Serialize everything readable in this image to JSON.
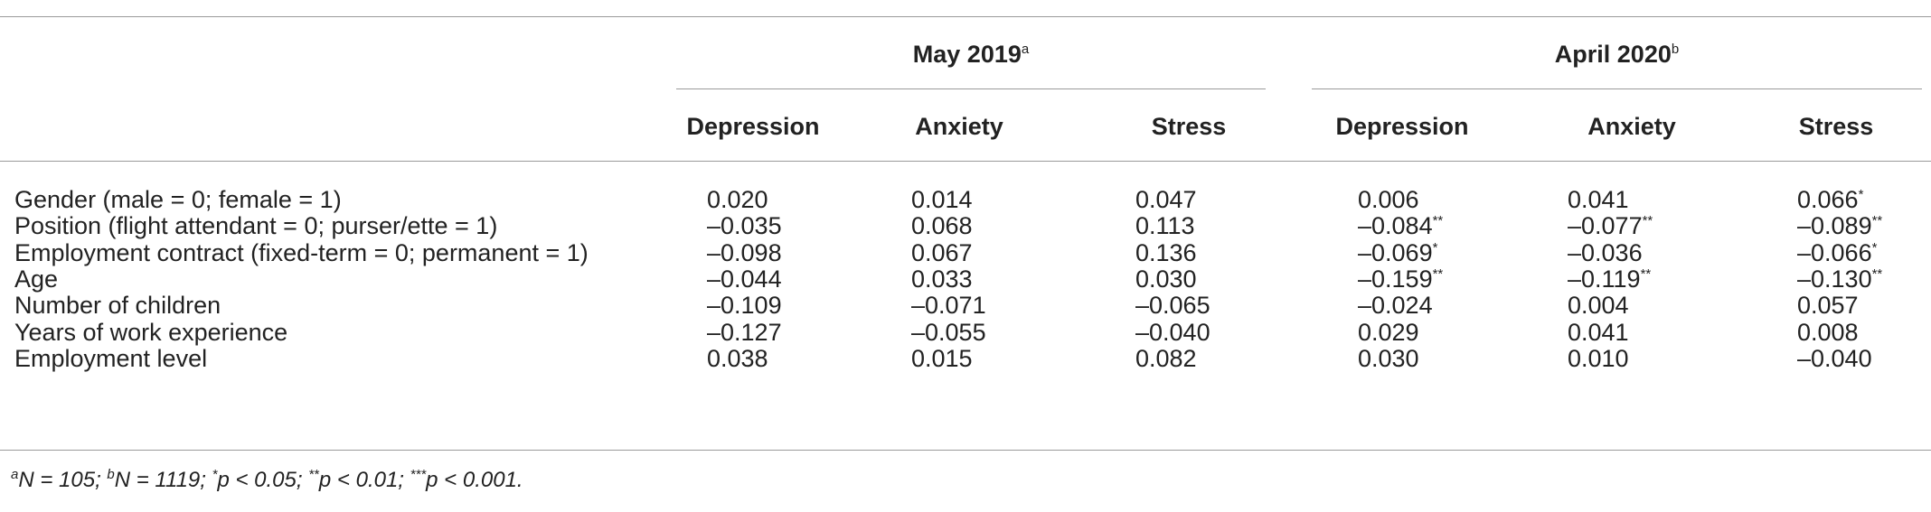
{
  "table": {
    "groups": [
      {
        "label": "May 2019",
        "sup": "a"
      },
      {
        "label": "April 2020",
        "sup": "b"
      }
    ],
    "columns": [
      "Depression",
      "Anxiety",
      "Stress",
      "Depression",
      "Anxiety",
      "Stress"
    ],
    "rows": [
      {
        "label": "Gender (male = 0; female = 1)",
        "cells": [
          {
            "v": "0.020",
            "s": ""
          },
          {
            "v": "0.014",
            "s": ""
          },
          {
            "v": "0.047",
            "s": ""
          },
          {
            "v": "0.006",
            "s": ""
          },
          {
            "v": "0.041",
            "s": ""
          },
          {
            "v": "0.066",
            "s": "*"
          }
        ]
      },
      {
        "label": "Position (flight attendant = 0; purser/ette = 1)",
        "cells": [
          {
            "v": "–0.035",
            "s": ""
          },
          {
            "v": "0.068",
            "s": ""
          },
          {
            "v": "0.113",
            "s": ""
          },
          {
            "v": "–0.084",
            "s": "**"
          },
          {
            "v": "–0.077",
            "s": "**"
          },
          {
            "v": "–0.089",
            "s": "**"
          }
        ]
      },
      {
        "label": "Employment contract (fixed-term = 0; permanent = 1)",
        "cells": [
          {
            "v": "–0.098",
            "s": ""
          },
          {
            "v": "0.067",
            "s": ""
          },
          {
            "v": "0.136",
            "s": ""
          },
          {
            "v": "–0.069",
            "s": "*"
          },
          {
            "v": "–0.036",
            "s": ""
          },
          {
            "v": "–0.066",
            "s": "*"
          }
        ]
      },
      {
        "label": "Age",
        "cells": [
          {
            "v": "–0.044",
            "s": ""
          },
          {
            "v": "0.033",
            "s": ""
          },
          {
            "v": "0.030",
            "s": ""
          },
          {
            "v": "–0.159",
            "s": "**"
          },
          {
            "v": "–0.119",
            "s": "**"
          },
          {
            "v": "–0.130",
            "s": "**"
          }
        ]
      },
      {
        "label": "Number of children",
        "cells": [
          {
            "v": "–0.109",
            "s": ""
          },
          {
            "v": "–0.071",
            "s": ""
          },
          {
            "v": "–0.065",
            "s": ""
          },
          {
            "v": "–0.024",
            "s": ""
          },
          {
            "v": "0.004",
            "s": ""
          },
          {
            "v": "0.057",
            "s": ""
          }
        ]
      },
      {
        "label": "Years of work experience",
        "cells": [
          {
            "v": "–0.127",
            "s": ""
          },
          {
            "v": "–0.055",
            "s": ""
          },
          {
            "v": "–0.040",
            "s": ""
          },
          {
            "v": "0.029",
            "s": ""
          },
          {
            "v": "0.041",
            "s": ""
          },
          {
            "v": "0.008",
            "s": ""
          }
        ]
      },
      {
        "label": "Employment level",
        "cells": [
          {
            "v": "0.038",
            "s": ""
          },
          {
            "v": "0.015",
            "s": ""
          },
          {
            "v": "0.082",
            "s": ""
          },
          {
            "v": "0.030",
            "s": ""
          },
          {
            "v": "0.010",
            "s": ""
          },
          {
            "v": "–0.040",
            "s": ""
          }
        ]
      }
    ],
    "footnote": {
      "parts": [
        {
          "sup": "a"
        },
        {
          "text": "N = 105; "
        },
        {
          "sup": "b"
        },
        {
          "text": "N = 1119; "
        },
        {
          "sup": "*"
        },
        {
          "text": "p < 0.05; "
        },
        {
          "sup": "**"
        },
        {
          "text": "p < 0.01; "
        },
        {
          "sup": "***"
        },
        {
          "text": "p < 0.001."
        }
      ]
    }
  }
}
